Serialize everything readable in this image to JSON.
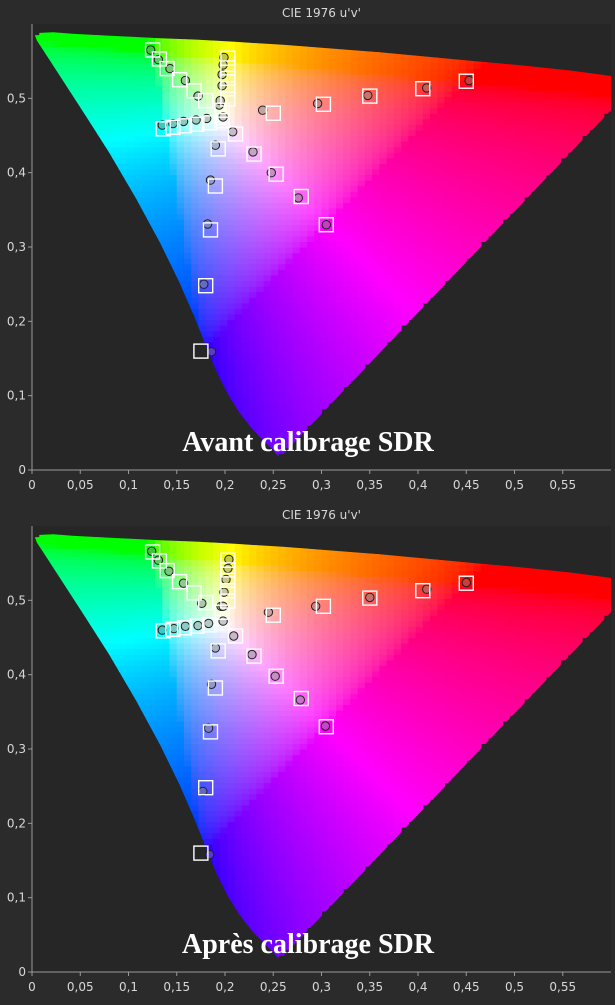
{
  "colors": {
    "background": "#2b2b2b",
    "plot_background": "#262626",
    "grid": "#4a4a4a",
    "text": "#d8d8d8",
    "target_box": "#ffffff"
  },
  "chart_data": [
    {
      "type": "scatter",
      "title": "CIE 1976 u'v'",
      "caption": "Avant calibrage SDR",
      "xlim": [
        0,
        0.6
      ],
      "ylim": [
        0,
        0.6
      ],
      "xticks": [
        "0",
        "0,05",
        "0,1",
        "0,15",
        "0,2",
        "0,25",
        "0,3",
        "0,35",
        "0,4",
        "0,45",
        "0,5",
        "0,55"
      ],
      "yticks": [
        "0",
        "0,1",
        "0,2",
        "0,3",
        "0,4",
        "0,5"
      ],
      "grid": false,
      "series": [
        {
          "marker": "square",
          "points": [
            [
              0.125,
              0.565
            ],
            [
              0.132,
              0.553
            ],
            [
              0.14,
              0.54
            ],
            [
              0.153,
              0.525
            ],
            [
              0.168,
              0.51
            ],
            [
              0.18,
              0.497
            ],
            [
              0.197,
              0.484
            ],
            [
              0.203,
              0.554
            ],
            [
              0.203,
              0.541
            ],
            [
              0.203,
              0.527
            ],
            [
              0.203,
              0.513
            ],
            [
              0.203,
              0.499
            ],
            [
              0.136,
              0.459
            ],
            [
              0.146,
              0.461
            ],
            [
              0.158,
              0.463
            ],
            [
              0.171,
              0.465
            ],
            [
              0.184,
              0.467
            ],
            [
              0.197,
              0.47
            ],
            [
              0.211,
              0.452
            ],
            [
              0.23,
              0.425
            ],
            [
              0.253,
              0.398
            ],
            [
              0.279,
              0.368
            ],
            [
              0.305,
              0.33
            ],
            [
              0.193,
              0.432
            ],
            [
              0.19,
              0.382
            ],
            [
              0.185,
              0.323
            ],
            [
              0.18,
              0.248
            ],
            [
              0.175,
              0.16
            ],
            [
              0.25,
              0.48
            ],
            [
              0.302,
              0.492
            ],
            [
              0.35,
              0.503
            ],
            [
              0.405,
              0.513
            ],
            [
              0.45,
              0.523
            ]
          ]
        },
        {
          "marker": "circle",
          "points": [
            [
              0.123,
              0.565
            ],
            [
              0.131,
              0.552
            ],
            [
              0.143,
              0.54
            ],
            [
              0.159,
              0.524
            ],
            [
              0.172,
              0.503
            ],
            [
              0.194,
              0.491
            ],
            [
              0.198,
              0.475
            ],
            [
              0.199,
              0.555
            ],
            [
              0.198,
              0.545
            ],
            [
              0.197,
              0.532
            ],
            [
              0.197,
              0.517
            ],
            [
              0.195,
              0.497
            ],
            [
              0.135,
              0.464
            ],
            [
              0.146,
              0.466
            ],
            [
              0.157,
              0.469
            ],
            [
              0.17,
              0.471
            ],
            [
              0.181,
              0.473
            ],
            [
              0.208,
              0.455
            ],
            [
              0.229,
              0.428
            ],
            [
              0.248,
              0.4
            ],
            [
              0.276,
              0.366
            ],
            [
              0.305,
              0.33
            ],
            [
              0.19,
              0.437
            ],
            [
              0.185,
              0.39
            ],
            [
              0.182,
              0.331
            ],
            [
              0.178,
              0.25
            ],
            [
              0.186,
              0.159
            ],
            [
              0.239,
              0.484
            ],
            [
              0.296,
              0.493
            ],
            [
              0.348,
              0.504
            ],
            [
              0.409,
              0.514
            ],
            [
              0.453,
              0.524
            ]
          ]
        }
      ]
    },
    {
      "type": "scatter",
      "title": "CIE 1976 u'v'",
      "caption": "Après calibrage SDR",
      "xlim": [
        0,
        0.6
      ],
      "ylim": [
        0,
        0.6
      ],
      "xticks": [
        "0",
        "0,05",
        "0,1",
        "0,15",
        "0,2",
        "0,25",
        "0,3",
        "0,35",
        "0,4",
        "0,45",
        "0,5",
        "0,55"
      ],
      "yticks": [
        "0",
        "0,1",
        "0,2",
        "0,3",
        "0,4",
        "0,5"
      ],
      "grid": false,
      "series": [
        {
          "marker": "square",
          "points": [
            [
              0.125,
              0.565
            ],
            [
              0.132,
              0.553
            ],
            [
              0.14,
              0.54
            ],
            [
              0.153,
              0.525
            ],
            [
              0.168,
              0.51
            ],
            [
              0.18,
              0.497
            ],
            [
              0.197,
              0.484
            ],
            [
              0.203,
              0.554
            ],
            [
              0.203,
              0.541
            ],
            [
              0.203,
              0.527
            ],
            [
              0.203,
              0.513
            ],
            [
              0.203,
              0.499
            ],
            [
              0.136,
              0.459
            ],
            [
              0.146,
              0.461
            ],
            [
              0.158,
              0.463
            ],
            [
              0.171,
              0.465
            ],
            [
              0.184,
              0.467
            ],
            [
              0.197,
              0.47
            ],
            [
              0.211,
              0.452
            ],
            [
              0.23,
              0.425
            ],
            [
              0.253,
              0.398
            ],
            [
              0.279,
              0.368
            ],
            [
              0.305,
              0.33
            ],
            [
              0.193,
              0.432
            ],
            [
              0.19,
              0.382
            ],
            [
              0.185,
              0.323
            ],
            [
              0.18,
              0.248
            ],
            [
              0.175,
              0.16
            ],
            [
              0.25,
              0.48
            ],
            [
              0.302,
              0.492
            ],
            [
              0.35,
              0.503
            ],
            [
              0.405,
              0.513
            ],
            [
              0.45,
              0.523
            ]
          ]
        },
        {
          "marker": "circle",
          "points": [
            [
              0.124,
              0.566
            ],
            [
              0.131,
              0.554
            ],
            [
              0.142,
              0.539
            ],
            [
              0.157,
              0.523
            ],
            [
              0.176,
              0.496
            ],
            [
              0.196,
              0.492
            ],
            [
              0.198,
              0.472
            ],
            [
              0.204,
              0.555
            ],
            [
              0.203,
              0.543
            ],
            [
              0.201,
              0.528
            ],
            [
              0.199,
              0.511
            ],
            [
              0.198,
              0.492
            ],
            [
              0.135,
              0.46
            ],
            [
              0.147,
              0.462
            ],
            [
              0.159,
              0.465
            ],
            [
              0.172,
              0.466
            ],
            [
              0.183,
              0.469
            ],
            [
              0.209,
              0.452
            ],
            [
              0.228,
              0.427
            ],
            [
              0.252,
              0.398
            ],
            [
              0.278,
              0.366
            ],
            [
              0.304,
              0.331
            ],
            [
              0.19,
              0.436
            ],
            [
              0.186,
              0.387
            ],
            [
              0.183,
              0.328
            ],
            [
              0.177,
              0.243
            ],
            [
              0.184,
              0.158
            ],
            [
              0.245,
              0.484
            ],
            [
              0.294,
              0.492
            ],
            [
              0.35,
              0.504
            ],
            [
              0.409,
              0.515
            ],
            [
              0.45,
              0.524
            ]
          ]
        }
      ]
    }
  ]
}
